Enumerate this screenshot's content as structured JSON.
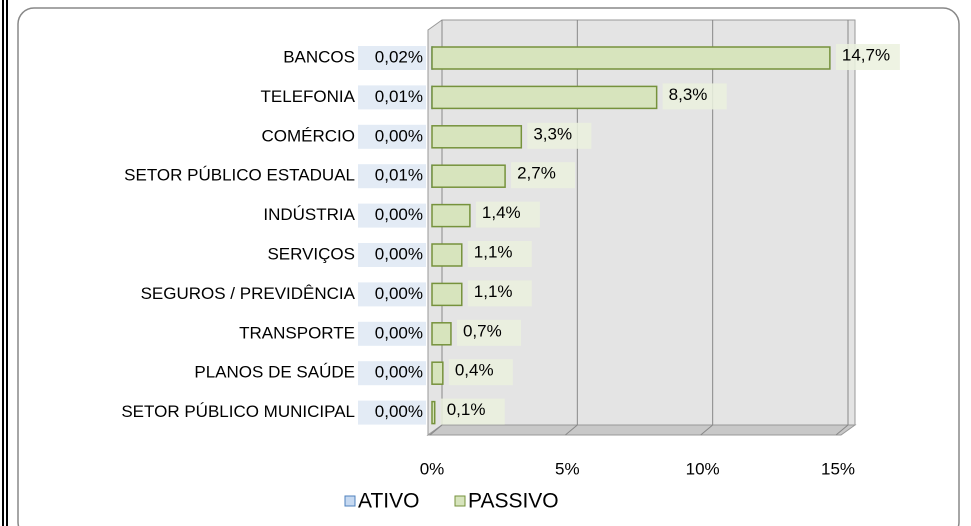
{
  "chart_data": {
    "type": "bar",
    "orientation": "horizontal",
    "categories": [
      "BANCOS",
      "TELEFONIA",
      "COMÉRCIO",
      "SETOR PÚBLICO ESTADUAL",
      "INDÚSTRIA",
      "SERVIÇOS",
      "SEGUROS / PREVIDÊNCIA",
      "TRANSPORTE",
      "PLANOS DE SAÚDE",
      "SETOR PÚBLICO MUNICIPAL"
    ],
    "series": [
      {
        "name": "ATIVO",
        "color": "#c6d9f1",
        "values": [
          0.02,
          0.01,
          0.0,
          0.01,
          0.0,
          0.0,
          0.0,
          0.0,
          0.0,
          0.0
        ],
        "value_labels": [
          "0,02%",
          "0,01%",
          "0,00%",
          "0,01%",
          "0,00%",
          "0,00%",
          "0,00%",
          "0,00%",
          "0,00%",
          "0,00%"
        ]
      },
      {
        "name": "PASSIVO",
        "color": "#d7e4bd",
        "values": [
          14.7,
          8.3,
          3.3,
          2.7,
          1.4,
          1.1,
          1.1,
          0.7,
          0.4,
          0.1
        ],
        "value_labels": [
          "14,7%",
          "8,3%",
          "3,3%",
          "2,7%",
          "1,4%",
          "1,1%",
          "1,1%",
          "0,7%",
          "0,4%",
          "0,1%"
        ]
      }
    ],
    "xlim": [
      0,
      15
    ],
    "xticks": [
      {
        "value": 0,
        "label": "0%"
      },
      {
        "value": 5,
        "label": "5%"
      },
      {
        "value": 10,
        "label": "10%"
      },
      {
        "value": 15,
        "label": "15%"
      }
    ],
    "grid": true,
    "legend": "bottom"
  }
}
